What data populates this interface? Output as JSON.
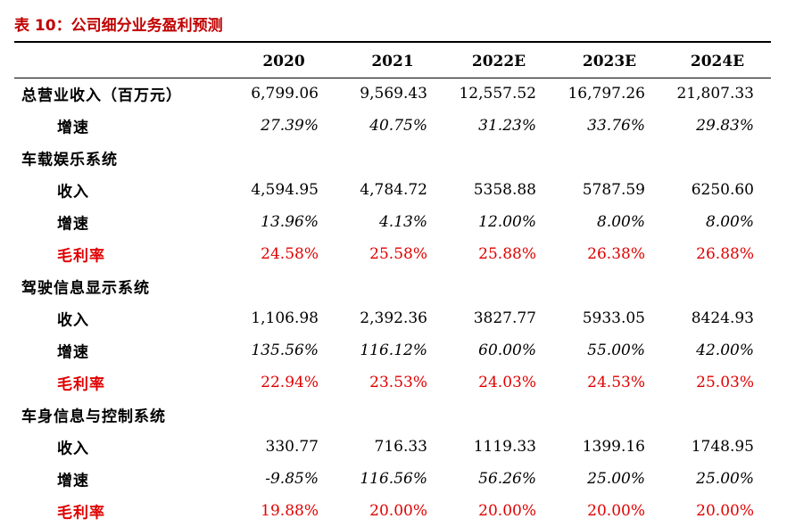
{
  "title": "表 10：公司细分业务盈利预测",
  "header": {
    "years": [
      "2020",
      "2021",
      "2022E",
      "2023E",
      "2024E"
    ]
  },
  "sections": [
    {
      "name": "总营业收入（百万元）",
      "values": [
        "6,799.06",
        "9,569.43",
        "12,557.52",
        "16,797.26",
        "21,807.33"
      ],
      "rows": [
        {
          "label": "增速",
          "style": "growth",
          "values": [
            "27.39%",
            "40.75%",
            "31.23%",
            "33.76%",
            "29.83%"
          ]
        }
      ]
    },
    {
      "name": "车载娱乐系统",
      "values": [
        "",
        "",
        "",
        "",
        ""
      ],
      "rows": [
        {
          "label": "收入",
          "style": "revenue",
          "values": [
            "4,594.95",
            "4,784.72",
            "5358.88",
            "5787.59",
            "6250.60"
          ]
        },
        {
          "label": "增速",
          "style": "growth",
          "values": [
            "13.96%",
            "4.13%",
            "12.00%",
            "8.00%",
            "8.00%"
          ]
        },
        {
          "label": "毛利率",
          "style": "margin",
          "values": [
            "24.58%",
            "25.58%",
            "25.88%",
            "26.38%",
            "26.88%"
          ]
        }
      ]
    },
    {
      "name": "驾驶信息显示系统",
      "values": [
        "",
        "",
        "",
        "",
        ""
      ],
      "rows": [
        {
          "label": "收入",
          "style": "revenue",
          "values": [
            "1,106.98",
            "2,392.36",
            "3827.77",
            "5933.05",
            "8424.93"
          ]
        },
        {
          "label": "增速",
          "style": "growth",
          "values": [
            "135.56%",
            "116.12%",
            "60.00%",
            "55.00%",
            "42.00%"
          ]
        },
        {
          "label": "毛利率",
          "style": "margin",
          "values": [
            "22.94%",
            "23.53%",
            "24.03%",
            "24.53%",
            "25.03%"
          ]
        }
      ]
    },
    {
      "name": "车身信息与控制系统",
      "values": [
        "",
        "",
        "",
        "",
        ""
      ],
      "rows": [
        {
          "label": "收入",
          "style": "revenue",
          "values": [
            "330.77",
            "716.33",
            "1119.33",
            "1399.16",
            "1748.95"
          ]
        },
        {
          "label": "增速",
          "style": "growth",
          "values": [
            "-9.85%",
            "116.56%",
            "56.26%",
            "25.00%",
            "25.00%"
          ]
        },
        {
          "label": "毛利率",
          "style": "margin",
          "values": [
            "19.88%",
            "20.00%",
            "20.00%",
            "20.00%",
            "20.00%"
          ]
        }
      ]
    }
  ]
}
